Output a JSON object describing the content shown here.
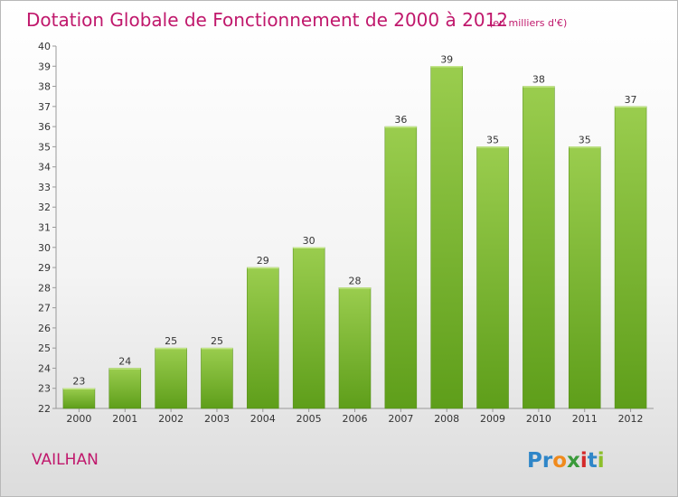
{
  "chart_data": {
    "type": "bar",
    "title": "Dotation Globale de Fonctionnement de 2000 à 2012",
    "subtitle": "(en milliers d'€)",
    "categories": [
      "2000",
      "2001",
      "2002",
      "2003",
      "2004",
      "2005",
      "2006",
      "2007",
      "2008",
      "2009",
      "2010",
      "2011",
      "2012"
    ],
    "values": [
      23,
      24,
      25,
      25,
      29,
      30,
      28,
      36,
      39,
      35,
      38,
      35,
      37
    ],
    "ylim": [
      22,
      40
    ],
    "yticks": [
      22,
      23,
      24,
      25,
      26,
      27,
      28,
      29,
      30,
      31,
      32,
      33,
      34,
      35,
      36,
      37,
      38,
      39,
      40
    ],
    "grid": false,
    "bar_color_top": "#9acd4e",
    "bar_color_bottom": "#5e9e1a"
  },
  "footer": {
    "commune": "VAILHAN",
    "brand_letters": [
      {
        "ch": "P",
        "color": "#2f86c8"
      },
      {
        "ch": "r",
        "color": "#2f86c8"
      },
      {
        "ch": "o",
        "color": "#f08a1c"
      },
      {
        "ch": "x",
        "color": "#3a9a3a"
      },
      {
        "ch": "i",
        "color": "#d42a2a"
      },
      {
        "ch": "t",
        "color": "#2f86c8"
      },
      {
        "ch": "i",
        "color": "#8cbf2a"
      }
    ]
  }
}
